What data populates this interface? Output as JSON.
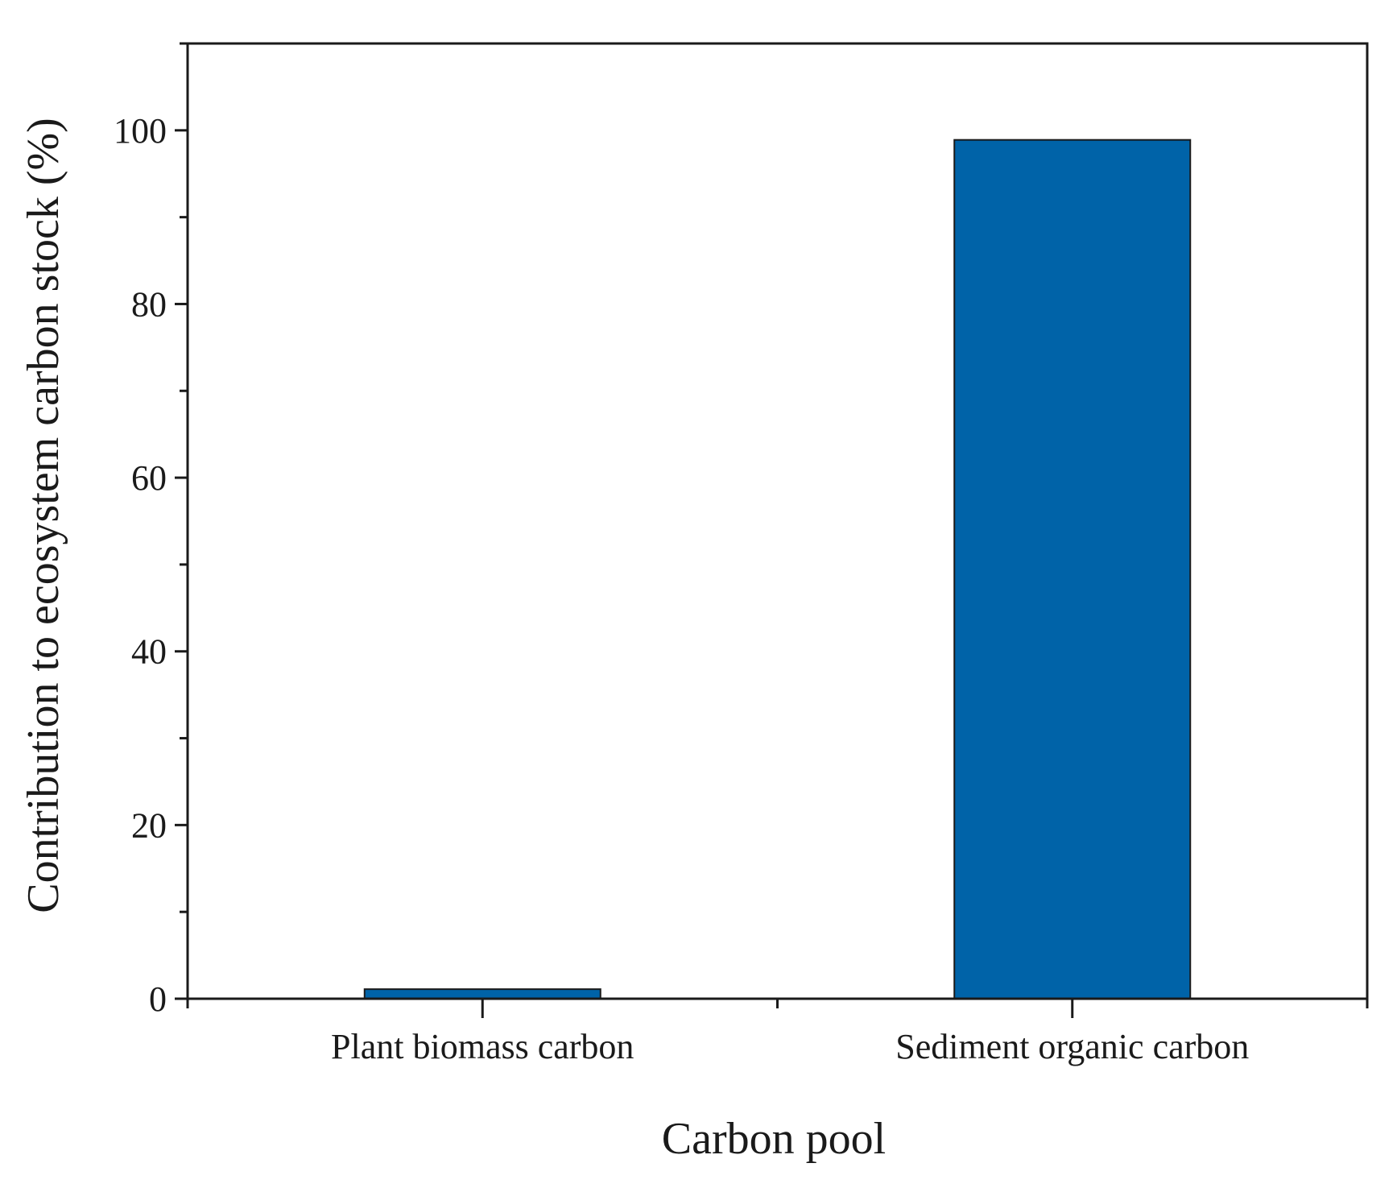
{
  "chart_data": {
    "type": "bar",
    "categories": [
      "Plant biomass carbon",
      "Sediment organic carbon"
    ],
    "values": [
      1.1,
      98.9
    ],
    "title": "",
    "xlabel": "Carbon pool",
    "ylabel": "Contribution to ecosystem carbon stock (%)",
    "ylim": [
      0,
      110
    ],
    "yticks": [
      0,
      20,
      40,
      60,
      80,
      100
    ],
    "ytick_labels": [
      "0",
      "20",
      "40",
      "60",
      "80",
      "100"
    ],
    "grid": false,
    "legend": "none",
    "bar_color": "#0063a8",
    "bar_edge_color": "#1a1a1a"
  }
}
